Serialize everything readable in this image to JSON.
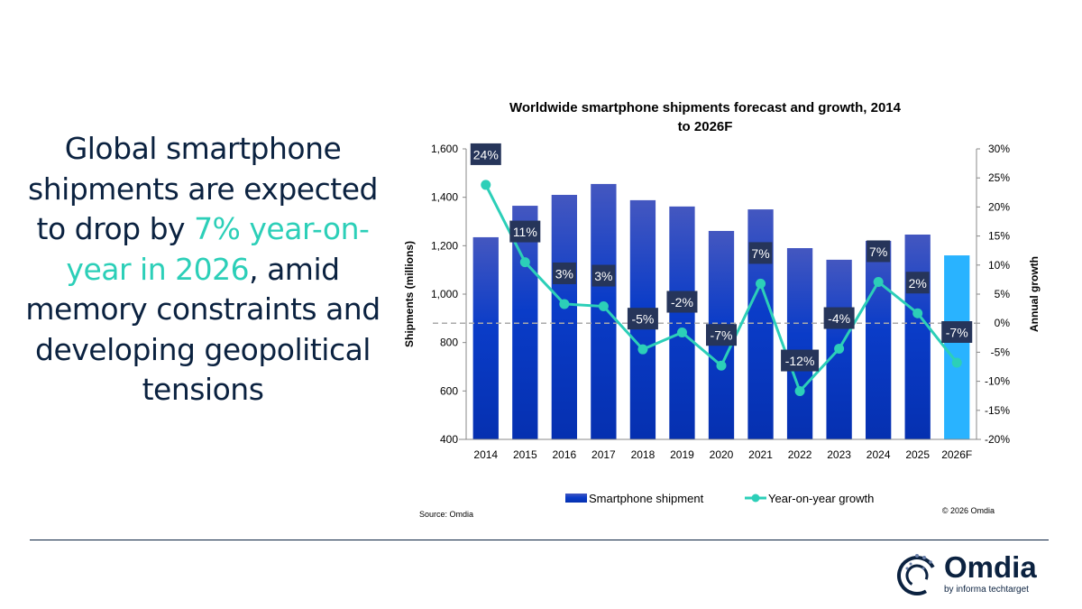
{
  "headline": {
    "before": "Global smartphone shipments are expected to drop by ",
    "highlight": "7% year-on-year in 2026",
    "after": ", amid memory constraints and developing geopolitical tensions"
  },
  "colors": {
    "navy": "#0b2240",
    "teal": "#2ccfb8",
    "bar": "#0a35c0",
    "bar_forecast": "#29b3ff",
    "label_bg": "#26355a"
  },
  "chart_data": {
    "type": "bar",
    "title": "Worldwide smartphone shipments forecast and growth, 2014 to 2026F",
    "title_lines": [
      "Worldwide smartphone shipments forecast and growth, 2014",
      "to 2026F"
    ],
    "categories": [
      "2014",
      "2015",
      "2016",
      "2017",
      "2018",
      "2019",
      "2020",
      "2021",
      "2022",
      "2023",
      "2024",
      "2025",
      "2026F"
    ],
    "ylabel": "Shipments (millions)",
    "y2label": "Annual growth",
    "ylim": [
      400,
      1600
    ],
    "y2lim": [
      -20,
      30
    ],
    "yticks": [
      "400",
      "600",
      "800",
      "1,000",
      "1,200",
      "1,400",
      "1,600"
    ],
    "y2ticks": [
      "-20%",
      "-15%",
      "-10%",
      "-5%",
      "0%",
      "5%",
      "10%",
      "15%",
      "20%",
      "25%",
      "30%"
    ],
    "series": [
      {
        "name": "Smartphone shipment",
        "type": "bar",
        "values": [
          1235,
          1365,
          1410,
          1455,
          1388,
          1362,
          1261,
          1350,
          1190,
          1142,
          1220,
          1246,
          1160
        ]
      },
      {
        "name": "Year-on-year growth",
        "type": "line",
        "axis": "right",
        "values": [
          23.8,
          10.5,
          3.3,
          2.9,
          -4.5,
          -1.6,
          -7.3,
          6.8,
          -11.7,
          -4.4,
          7.1,
          1.7,
          -6.8
        ],
        "labels": [
          "24%",
          "11%",
          "3%",
          "3%",
          "-5%",
          "-2%",
          "-7%",
          "7%",
          "-12%",
          "-4%",
          "7%",
          "2%",
          "-7%"
        ]
      }
    ],
    "reference_line": "0% (dashed)",
    "legend": "bottom",
    "grid": false,
    "source": "Source: Omdia",
    "copyright": "© 2026 Omdia"
  },
  "logo": {
    "name": "Omdia",
    "sub": "by informa techtarget"
  }
}
